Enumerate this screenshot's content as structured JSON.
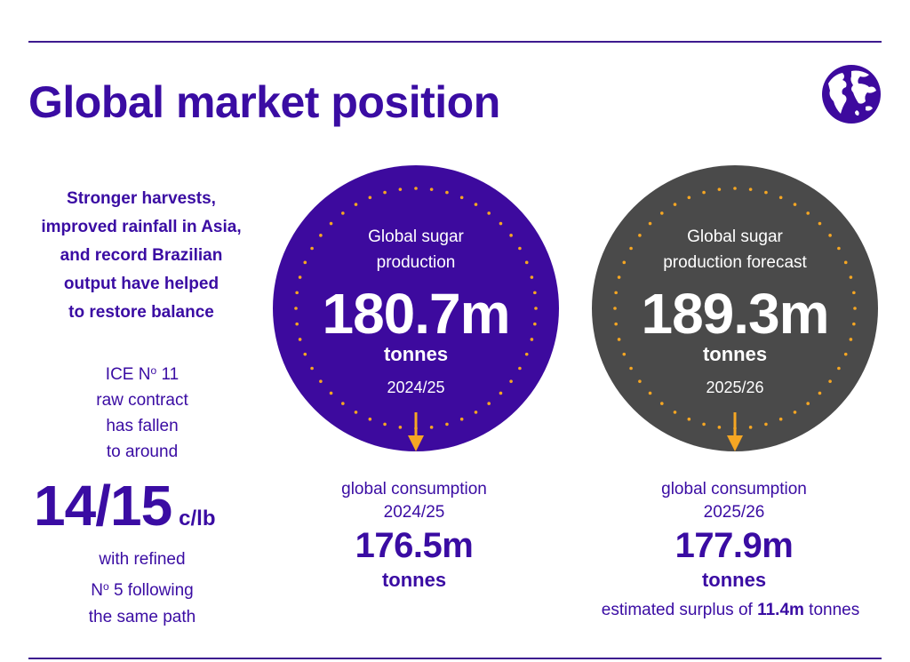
{
  "page": {
    "title": "Global market position",
    "accent_color": "#3d0a9e",
    "dark_color": "#4a4a4a",
    "dot_color": "#f5a623",
    "icon": "globe-icon"
  },
  "left": {
    "intro": [
      "Stronger harvests,",
      "improved rainfall in Asia,",
      "and record Brazilian",
      "output have helped",
      "to restore balance"
    ],
    "ice_line1": "ICE N",
    "ice_sup": "o",
    "ice_num": " 11",
    "ice_rest": [
      "raw contract",
      "has fallen",
      "to around"
    ],
    "price_value": "14/15",
    "price_unit": "c/lb",
    "refined_line1": "with refined",
    "refined_no": "N",
    "refined_sup": "o",
    "refined_rest": " 5 following",
    "refined_line3": "the same path"
  },
  "production": {
    "label": [
      "Global sugar",
      "production"
    ],
    "value": "180.7m",
    "unit": "tonnes",
    "year": "2024/25"
  },
  "forecast": {
    "label": [
      "Global sugar",
      "production forecast"
    ],
    "value": "189.3m",
    "unit": "tonnes",
    "year": "2025/26"
  },
  "consumption_2024": {
    "label": "global consumption",
    "year": "2024/25",
    "value": "176.5m",
    "unit": "tonnes"
  },
  "consumption_2025": {
    "label": "global consumption",
    "year": "2025/26",
    "value": "177.9m",
    "unit": "tonnes",
    "surplus_prefix": "estimated surplus of ",
    "surplus_value": "11.4m",
    "surplus_suffix": " tonnes"
  }
}
